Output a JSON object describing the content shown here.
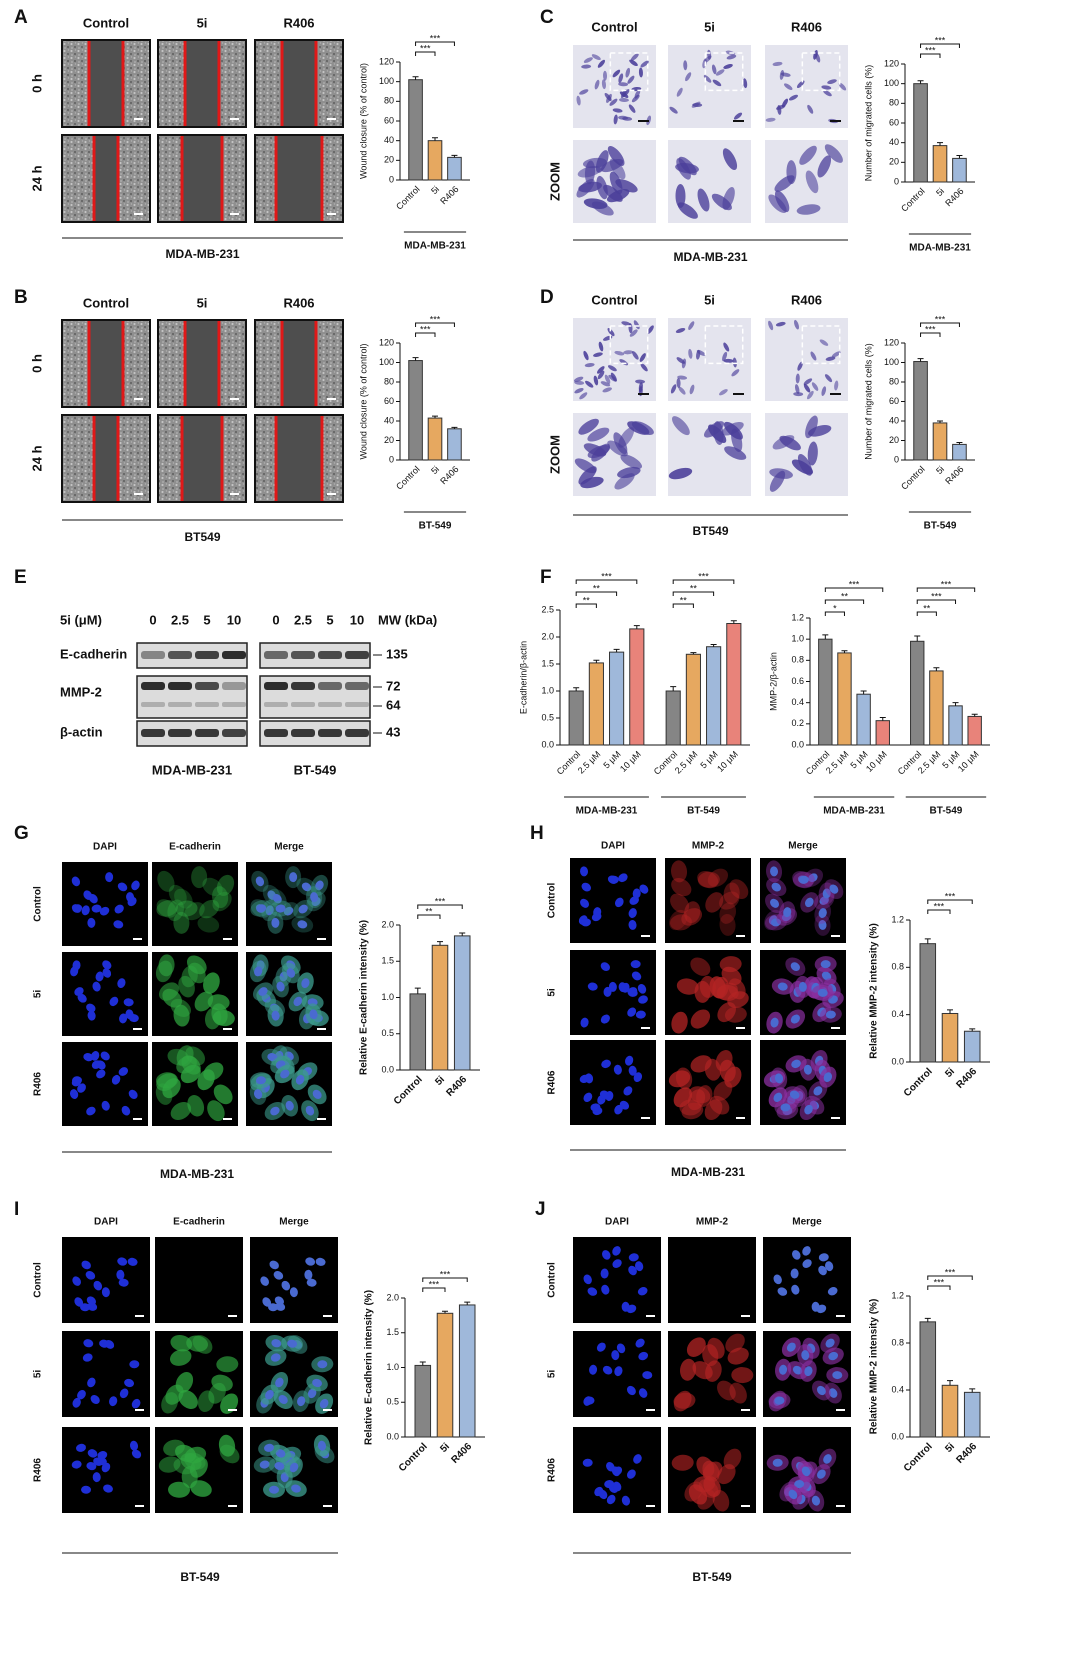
{
  "panels": [
    {
      "letter": "A",
      "columns": [
        "Control",
        "5i",
        "R406"
      ],
      "rows": [
        "0 h",
        "24 h"
      ],
      "cell_line": "MDA-MB-231"
    },
    {
      "letter": "B",
      "columns": [
        "Control",
        "5i",
        "R406"
      ],
      "rows": [
        "0 h",
        "24 h"
      ],
      "cell_line": "BT549"
    },
    {
      "letter": "C",
      "columns": [
        "Control",
        "5i",
        "R406"
      ],
      "rows": [
        null,
        "ZOOM"
      ],
      "cell_line": "MDA-MB-231"
    },
    {
      "letter": "D",
      "columns": [
        "Control",
        "5i",
        "R406"
      ],
      "rows": [
        null,
        "ZOOM"
      ],
      "cell_line": "BT549"
    },
    {
      "letter": "G",
      "columns": [
        "DAPI",
        "E-cadherin",
        "Merge"
      ],
      "rows": [
        "Control",
        "5i",
        "R406"
      ],
      "cell_line": "MDA-MB-231"
    },
    {
      "letter": "H",
      "columns": [
        "DAPI",
        "MMP-2",
        "Merge"
      ],
      "rows": [
        "Control",
        "5i",
        "R406"
      ],
      "cell_line": "MDA-MB-231"
    },
    {
      "letter": "I",
      "columns": [
        "DAPI",
        "E-cadherin",
        "Merge"
      ],
      "rows": [
        "Control",
        "5i",
        "R406"
      ],
      "cell_line": "BT-549"
    },
    {
      "letter": "J",
      "columns": [
        "DAPI",
        "MMP-2",
        "Merge"
      ],
      "rows": [
        "Control",
        "5i",
        "R406"
      ],
      "cell_line": "BT-549"
    }
  ],
  "blot": {
    "letter": "E",
    "dose_label": "5i (μM)",
    "doses": [
      "0",
      "2.5",
      "5",
      "10"
    ],
    "mw_label": "MW (kDa)",
    "proteins": [
      "E-cadherin",
      "MMP-2",
      "β-actin"
    ],
    "markers": [
      135,
      72,
      64,
      43
    ],
    "cell_lines": [
      "MDA-MB-231",
      "BT-549"
    ]
  },
  "blot_quantification": {
    "letter": "F"
  },
  "chart_data": [
    {
      "type": "bar",
      "ylabel": "Wound closure (% of control)",
      "categories": [
        "Control",
        "5i",
        "R406"
      ],
      "values": [
        102,
        40,
        23
      ],
      "errors": [
        3,
        3,
        2
      ],
      "colors": [
        "#858585",
        "#e6a860",
        "#9fb8da"
      ],
      "ylim": [
        0,
        120
      ],
      "yticks": [
        0,
        20,
        40,
        60,
        80,
        100,
        120
      ],
      "significance": [
        "***",
        "***"
      ],
      "group_label": "MDA-MB-231"
    },
    {
      "type": "bar",
      "ylabel": "Wound closure (% of control)",
      "categories": [
        "Control",
        "5i",
        "R406"
      ],
      "values": [
        102,
        43,
        32
      ],
      "errors": [
        3,
        2,
        1.5
      ],
      "colors": [
        "#858585",
        "#e6a860",
        "#9fb8da"
      ],
      "ylim": [
        0,
        120
      ],
      "yticks": [
        0,
        20,
        40,
        60,
        80,
        100,
        120
      ],
      "significance": [
        "***",
        "***"
      ],
      "group_label": "BT-549"
    },
    {
      "type": "bar",
      "ylabel": "Number of migrated cells (%)",
      "categories": [
        "Control",
        "5i",
        "R406"
      ],
      "values": [
        100,
        37,
        24
      ],
      "errors": [
        3,
        3,
        3
      ],
      "colors": [
        "#858585",
        "#e6a860",
        "#9fb8da"
      ],
      "ylim": [
        0,
        120
      ],
      "yticks": [
        0,
        20,
        40,
        60,
        80,
        100,
        120
      ],
      "significance": [
        "***",
        "***"
      ],
      "group_label": "MDA-MB-231"
    },
    {
      "type": "bar",
      "ylabel": "Number of migrated cells (%)",
      "categories": [
        "Control",
        "5i",
        "R406"
      ],
      "values": [
        101,
        38,
        16
      ],
      "errors": [
        3,
        2,
        2
      ],
      "colors": [
        "#858585",
        "#e6a860",
        "#9fb8da"
      ],
      "ylim": [
        0,
        120
      ],
      "yticks": [
        0,
        20,
        40,
        60,
        80,
        100,
        120
      ],
      "significance": [
        "***",
        "***"
      ],
      "group_label": "BT-549"
    },
    {
      "type": "grouped_bar",
      "ylabel": "E-cadherin/β-actin",
      "categories": [
        "Control",
        "2.5 μM",
        "5 μM",
        "10 μM"
      ],
      "colors": [
        "#858585",
        "#e6a860",
        "#9fb8da",
        "#e8837a"
      ],
      "ylim": [
        0,
        2.5
      ],
      "yticks": [
        {
          "value": 0,
          "label": "0.0"
        },
        0.5,
        {
          "value": 1,
          "label": "1.0"
        },
        1.5,
        {
          "value": 2,
          "label": "2.0"
        },
        2.5
      ],
      "groups": [
        {
          "name": "MDA-MB-231",
          "values": [
            1.0,
            1.52,
            1.72,
            2.15
          ],
          "errors": [
            0.06,
            0.05,
            0.05,
            0.06
          ],
          "significance": [
            "**",
            "**",
            "***"
          ]
        },
        {
          "name": "BT-549",
          "values": [
            1.0,
            1.68,
            1.82,
            2.25
          ],
          "errors": [
            0.08,
            0.03,
            0.04,
            0.05
          ],
          "significance": [
            "**",
            "**",
            "***"
          ]
        }
      ]
    },
    {
      "type": "grouped_bar",
      "ylabel": "MMP-2/β-actin",
      "categories": [
        "Control",
        "2.5 μM",
        "5 μM",
        "10 μM"
      ],
      "colors": [
        "#858585",
        "#e6a860",
        "#9fb8da",
        "#e8837a"
      ],
      "ylim": [
        0,
        1.2
      ],
      "yticks": [
        {
          "value": 0,
          "label": "0.0"
        },
        0.2,
        0.4,
        0.6,
        0.8,
        {
          "value": 1,
          "label": "1.0"
        },
        1.2
      ],
      "groups": [
        {
          "name": "MDA-MB-231",
          "values": [
            1.0,
            0.87,
            0.48,
            0.23
          ],
          "errors": [
            0.04,
            0.02,
            0.03,
            0.03
          ],
          "significance": [
            "*",
            "**",
            "***"
          ]
        },
        {
          "name": "BT-549",
          "values": [
            0.98,
            0.7,
            0.37,
            0.27
          ],
          "errors": [
            0.05,
            0.03,
            0.03,
            0.02
          ],
          "significance": [
            "**",
            "***",
            "***"
          ]
        }
      ]
    },
    {
      "type": "bar",
      "ylabel": "Relative E-cadherin intensity (%)",
      "categories": [
        "Control",
        "5i",
        "R406"
      ],
      "values": [
        1.05,
        1.72,
        1.85
      ],
      "errors": [
        0.08,
        0.05,
        0.04
      ],
      "colors": [
        "#858585",
        "#e6a860",
        "#9fb8da"
      ],
      "ylim": [
        0,
        2
      ],
      "yticks": [
        {
          "value": 0,
          "label": "0.0"
        },
        0.5,
        {
          "value": 1,
          "label": "1.0"
        },
        1.5,
        {
          "value": 2,
          "label": "2.0"
        }
      ],
      "significance": [
        "**",
        "***"
      ]
    },
    {
      "type": "bar",
      "ylabel": "Relative MMP-2 intensity (%)",
      "categories": [
        "Control",
        "5i",
        "R406"
      ],
      "values": [
        1.0,
        0.41,
        0.26
      ],
      "errors": [
        0.04,
        0.03,
        0.02
      ],
      "colors": [
        "#858585",
        "#e6a860",
        "#9fb8da"
      ],
      "ylim": [
        0,
        1.2
      ],
      "yticks": [
        {
          "value": 0,
          "label": "0.0"
        },
        0.4,
        0.8,
        1.2
      ],
      "significance": [
        "***",
        "***"
      ]
    },
    {
      "type": "bar",
      "ylabel": "Relative E-cadherin intensity (%)",
      "categories": [
        "Control",
        "5i",
        "R406"
      ],
      "values": [
        1.03,
        1.78,
        1.9
      ],
      "errors": [
        0.05,
        0.03,
        0.04
      ],
      "colors": [
        "#858585",
        "#e6a860",
        "#9fb8da"
      ],
      "ylim": [
        0,
        2
      ],
      "yticks": [
        {
          "value": 0,
          "label": "0.0"
        },
        0.5,
        {
          "value": 1,
          "label": "1.0"
        },
        1.5,
        {
          "value": 2,
          "label": "2.0"
        }
      ],
      "significance": [
        "***",
        "***"
      ]
    },
    {
      "type": "bar",
      "ylabel": "Relative MMP-2 intensity (%)",
      "categories": [
        "Control",
        "5i",
        "R406"
      ],
      "values": [
        0.98,
        0.44,
        0.38
      ],
      "errors": [
        0.03,
        0.04,
        0.03
      ],
      "colors": [
        "#858585",
        "#e6a860",
        "#9fb8da"
      ],
      "ylim": [
        0,
        1.2
      ],
      "yticks": [
        {
          "value": 0,
          "label": "0.0"
        },
        0.4,
        0.8,
        1.2
      ],
      "significance": [
        "***",
        "***"
      ]
    }
  ]
}
